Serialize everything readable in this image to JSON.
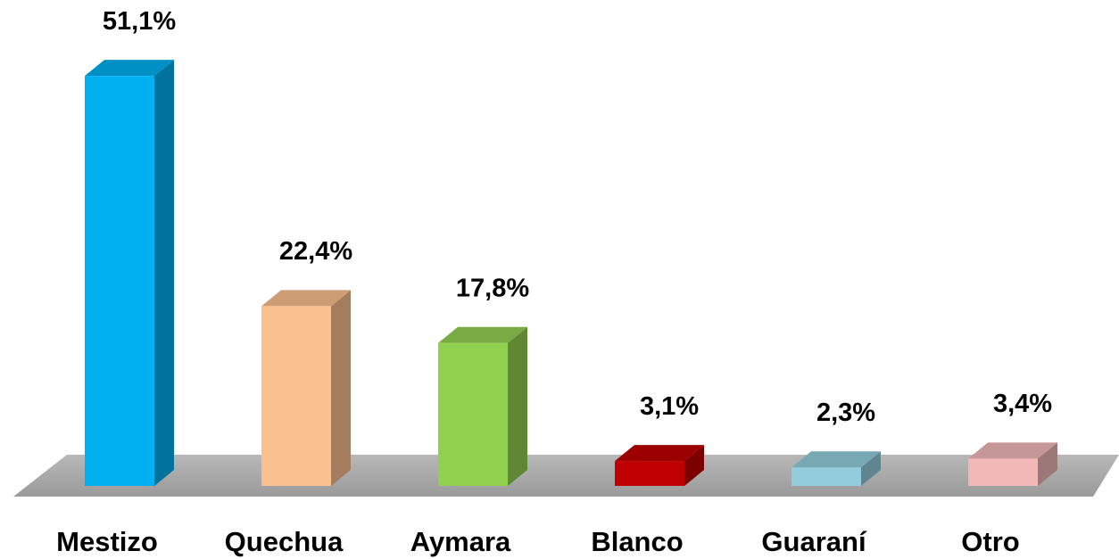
{
  "chart_data": {
    "type": "bar",
    "categories": [
      "Mestizo",
      "Quechua",
      "Aymara",
      "Blanco",
      "Guaraní",
      "Otro"
    ],
    "values": [
      51.1,
      22.4,
      17.8,
      3.1,
      2.3,
      3.4
    ],
    "value_labels": [
      "51,1%",
      "22,4%",
      "17,8%",
      "3,1%",
      "2,3%",
      "3,4%"
    ],
    "colors": [
      "#00b0f0",
      "#fac090",
      "#92d050",
      "#c00000",
      "#93cddd",
      "#f2b8b8"
    ]
  }
}
